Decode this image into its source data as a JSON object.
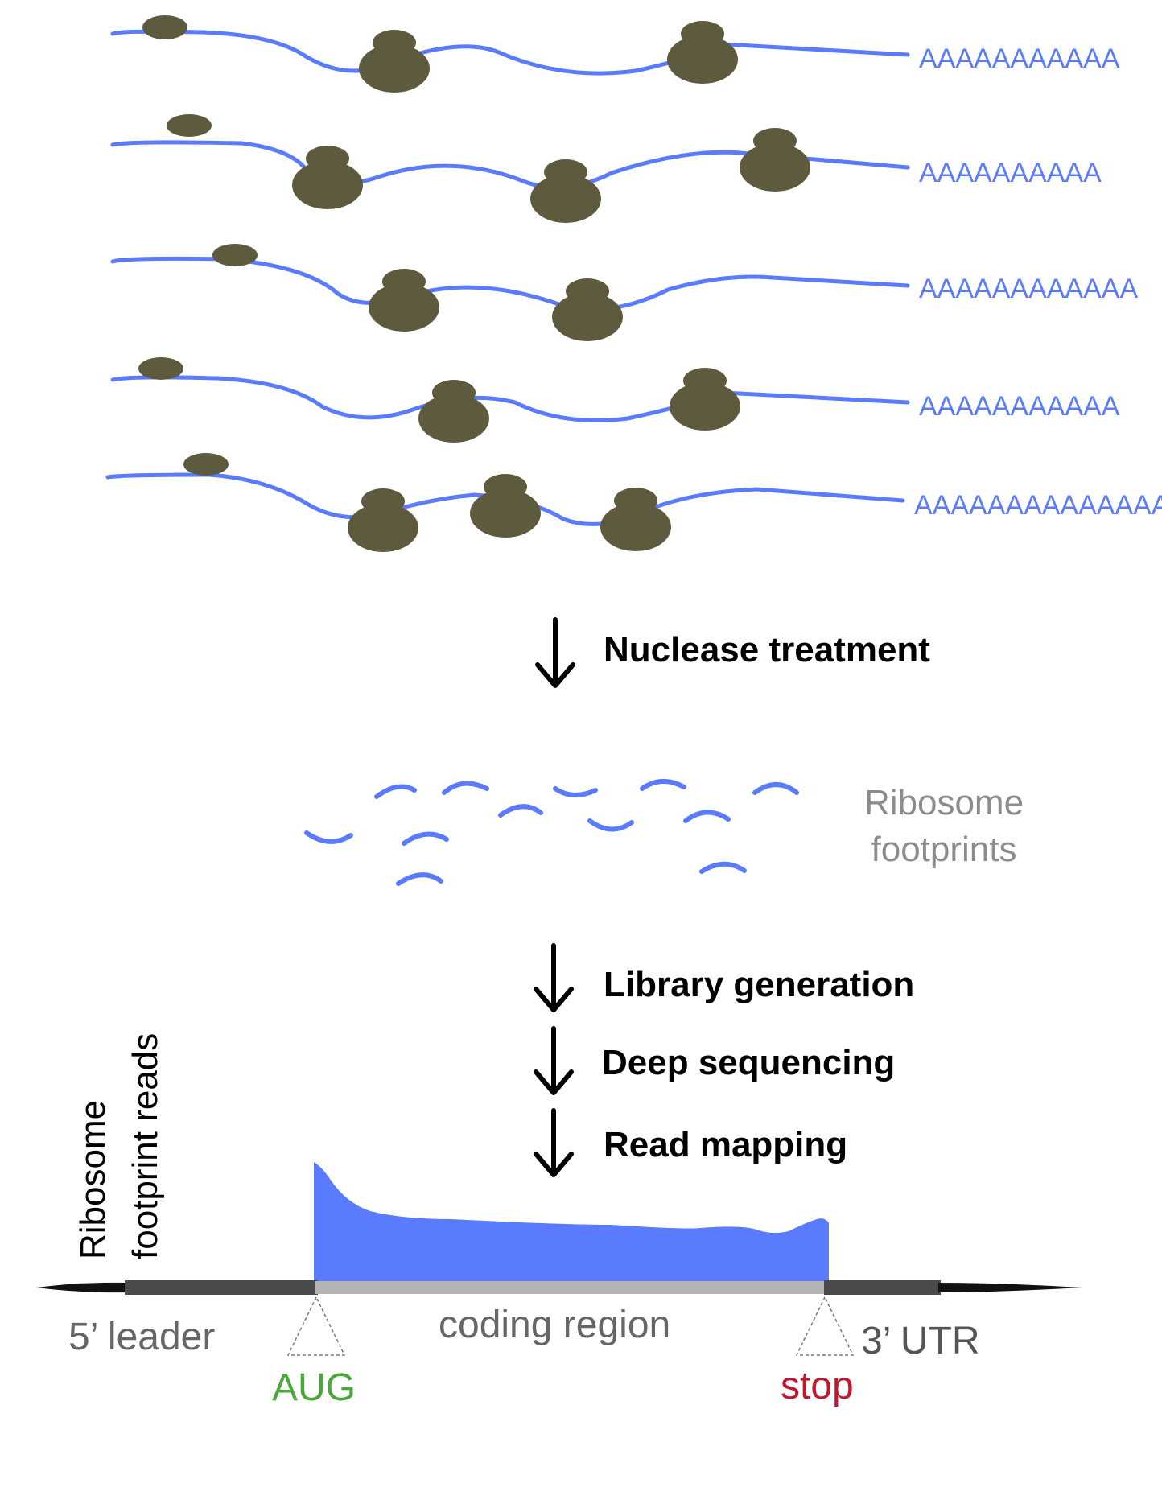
{
  "diagram": {
    "polyA_tails": [
      "AAAAAAAAAAA",
      "AAAAAAAAAA",
      "AAAAAAAAAAAA",
      "AAAAAAAAAAA",
      "AAAAAAAAAAAAAA"
    ],
    "steps": {
      "nuclease": "Nuclease treatment",
      "library": "Library generation",
      "sequencing": "Deep sequencing",
      "mapping": "Read mapping"
    },
    "footprints_label": {
      "line1": "Ribosome",
      "line2": "footprints"
    },
    "y_axis_label": {
      "line1": "Ribosome",
      "line2": "footprint reads"
    },
    "regions": {
      "leader": "5’ leader",
      "coding": "coding region",
      "utr": "3’ UTR",
      "start_codon": "AUG",
      "stop_codon": "stop"
    },
    "colors": {
      "mrna": "#5b7bff",
      "ribosome": "#5e5a3e",
      "start_codon": "#4aa73a",
      "stop_codon": "#c0172f"
    }
  }
}
